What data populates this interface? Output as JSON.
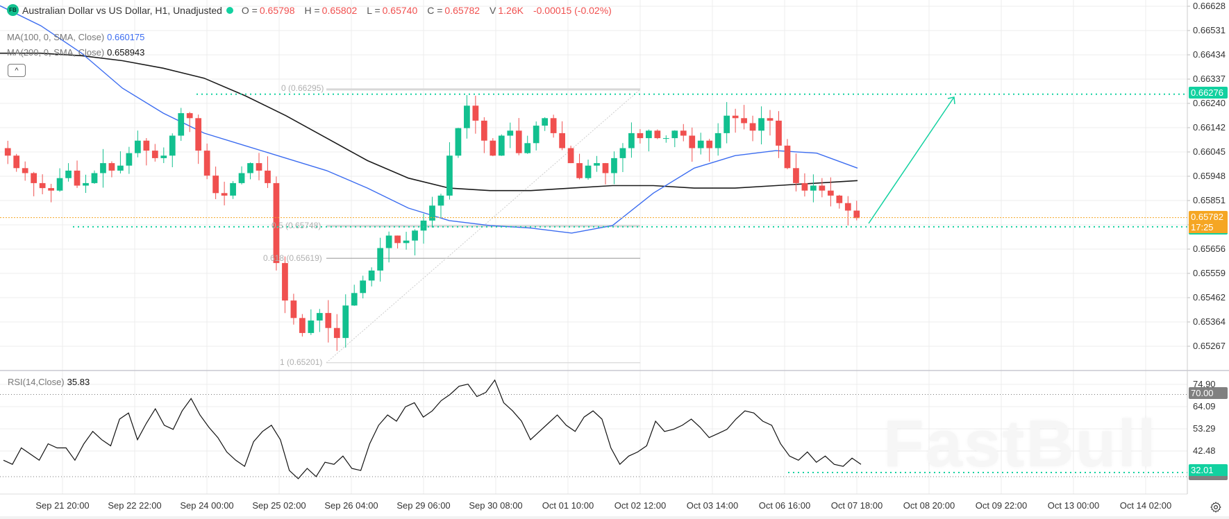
{
  "header": {
    "logo": "FB",
    "title": "Australian Dollar vs US Dollar, H1, Unadjusted",
    "ohlc": [
      {
        "key": "O =",
        "value": "0.65798"
      },
      {
        "key": "H =",
        "value": "0.65802"
      },
      {
        "key": "L =",
        "value": "0.65740"
      },
      {
        "key": "C =",
        "value": "0.65782"
      }
    ],
    "volume_key": "V",
    "volume": "1.26K",
    "change": "-0.00015 (-0.02%)"
  },
  "indicators": {
    "ma100": {
      "label": "MA(100, 0, SMA, Close)",
      "value": "0.660175",
      "color": "#3b6cf0"
    },
    "ma200": {
      "label": "MA(200, 0, SMA, Close)",
      "value": "0.658943",
      "color": "#111111"
    },
    "rsi": {
      "label": "RSI(14,Close)",
      "value": "35.83"
    }
  },
  "collapse_icon": "^",
  "price_axis": {
    "ticks": [
      "0.66628",
      "0.66531",
      "0.66434",
      "0.66337",
      "0.66240",
      "0.66142",
      "0.66045",
      "0.65948",
      "0.65851",
      "0.65753",
      "0.65656",
      "0.65559",
      "0.65462",
      "0.65364",
      "0.65267"
    ],
    "resistance_tag": "0.66276",
    "current_price_tag": "0.65782",
    "countdown": "17:25"
  },
  "rsi_axis": {
    "ticks": [
      "74.90",
      "64.09",
      "53.29",
      "42.48"
    ],
    "overbought_tag": "70.00",
    "support_tag": "32.01"
  },
  "time_axis": {
    "labels": [
      "Sep 21 20:00",
      "Sep 22 22:00",
      "Sep 24 00:00",
      "Sep 25 02:00",
      "Sep 26 04:00",
      "Sep 29 06:00",
      "Sep 30 08:00",
      "Oct 01 10:00",
      "Oct 02 12:00",
      "Oct 03 14:00",
      "Oct 06 16:00",
      "Oct 07 18:00",
      "Oct 08 20:00",
      "Oct 09 22:00",
      "Oct 13 00:00",
      "Oct 14 02:00"
    ]
  },
  "fibonacci": [
    {
      "label": "0 (0.66295)",
      "level": 0.66295
    },
    {
      "label": "0.5 (0.65748)",
      "level": 0.65748
    },
    {
      "label": "0.618 (0.65619)",
      "level": 0.65619
    },
    {
      "label": "1 (0.65201)",
      "level": 0.65201
    }
  ],
  "watermark": "FastBull",
  "colors": {
    "up": "#12c08f",
    "down": "#f0504f",
    "ma100": "#3b6cf0",
    "ma200": "#1a1a1a",
    "level_line": "#12d1a0",
    "current_price": "#f5a623",
    "grid": "#ececec"
  },
  "chart_data": {
    "type": "candlestick",
    "title": "Australian Dollar vs US Dollar, H1, Unadjusted",
    "instrument": "AUD/USD",
    "timeframe": "H1",
    "ylim": [
      0.652,
      0.6665
    ],
    "x_tick_labels": [
      "Sep 21 20:00",
      "Sep 22 22:00",
      "Sep 24 00:00",
      "Sep 25 02:00",
      "Sep 26 04:00",
      "Sep 29 06:00",
      "Sep 30 08:00",
      "Oct 01 10:00",
      "Oct 02 12:00",
      "Oct 03 14:00",
      "Oct 06 16:00",
      "Oct 07 18:00",
      "Oct 08 20:00",
      "Oct 09 22:00",
      "Oct 13 00:00",
      "Oct 14 02:00"
    ],
    "close_path": [
      0.6603,
      0.6598,
      0.6596,
      0.6592,
      0.659,
      0.6589,
      0.6594,
      0.6597,
      0.6591,
      0.6592,
      0.6596,
      0.66,
      0.6597,
      0.6599,
      0.6604,
      0.6609,
      0.6605,
      0.6602,
      0.6603,
      0.6611,
      0.662,
      0.6618,
      0.6605,
      0.6595,
      0.6588,
      0.6587,
      0.6592,
      0.6596,
      0.66,
      0.6597,
      0.6592,
      0.656,
      0.6545,
      0.6538,
      0.6532,
      0.6537,
      0.654,
      0.6534,
      0.653,
      0.6543,
      0.6548,
      0.6553,
      0.6557,
      0.6566,
      0.6571,
      0.6568,
      0.6569,
      0.6573,
      0.6577,
      0.6583,
      0.6587,
      0.6603,
      0.6614,
      0.6623,
      0.6617,
      0.6609,
      0.6603,
      0.6611,
      0.6613,
      0.6604,
      0.6608,
      0.6615,
      0.6618,
      0.6612,
      0.6606,
      0.66,
      0.6594,
      0.6599,
      0.66,
      0.6596,
      0.6602,
      0.6606,
      0.6612,
      0.661,
      0.6613,
      0.661,
      0.661,
      0.6613,
      0.6611,
      0.6606,
      0.6609,
      0.6606,
      0.6612,
      0.6619,
      0.6618,
      0.6616,
      0.6613,
      0.6618,
      0.6617,
      0.6607,
      0.6598,
      0.6592,
      0.6589,
      0.6591,
      0.6589,
      0.6587,
      0.6584,
      0.6581,
      0.6578
    ],
    "ma100_path": [
      0.6663,
      0.6655,
      0.6644,
      0.663,
      0.662,
      0.6612,
      0.6607,
      0.6602,
      0.6597,
      0.659,
      0.6582,
      0.6577,
      0.6575,
      0.6574,
      0.6572,
      0.6575,
      0.6588,
      0.6598,
      0.6603,
      0.6605,
      0.6604,
      0.6598
    ],
    "ma200_path": [
      0.6644,
      0.6644,
      0.6643,
      0.6641,
      0.6638,
      0.6634,
      0.6627,
      0.6619,
      0.661,
      0.6601,
      0.6594,
      0.659,
      0.6589,
      0.6589,
      0.659,
      0.6591,
      0.6591,
      0.659,
      0.659,
      0.6591,
      0.6592,
      0.6593
    ],
    "horizontal_levels": {
      "resistance": 0.66276,
      "support": 0.65745,
      "current": 0.65782
    },
    "projection_arrow": {
      "from": 0.65745,
      "to": 0.66276
    },
    "rsi": {
      "period": 14,
      "current": 35.83,
      "overbought": 70.0,
      "support_line": 32.01,
      "ylim": [
        25,
        80
      ],
      "values": [
        38,
        36,
        44,
        41,
        38,
        46,
        44,
        44,
        38,
        46,
        52,
        48,
        45,
        58,
        61,
        48,
        56,
        63,
        55,
        53,
        62,
        68,
        60,
        54,
        49,
        42,
        38,
        35,
        47,
        52,
        55,
        48,
        33,
        29,
        34,
        30,
        37,
        36,
        40,
        34,
        33,
        46,
        55,
        60,
        57,
        64,
        66,
        59,
        62,
        67,
        70,
        74,
        75,
        69,
        71,
        77,
        66,
        62,
        57,
        48,
        52,
        56,
        60,
        55,
        52,
        59,
        62,
        58,
        44,
        36,
        40,
        42,
        45,
        57,
        52,
        53,
        55,
        58,
        54,
        49,
        51,
        53,
        58,
        62,
        61,
        57,
        55,
        46,
        40,
        38,
        42,
        37,
        40,
        36,
        35,
        39,
        36
      ],
      "ticks": [
        74.9,
        64.09,
        53.29,
        42.48
      ]
    },
    "fibonacci_retracement": [
      {
        "ratio": 0,
        "price": 0.66295
      },
      {
        "ratio": 0.5,
        "price": 0.65748
      },
      {
        "ratio": 0.618,
        "price": 0.65619
      },
      {
        "ratio": 1,
        "price": 0.65201
      }
    ]
  }
}
